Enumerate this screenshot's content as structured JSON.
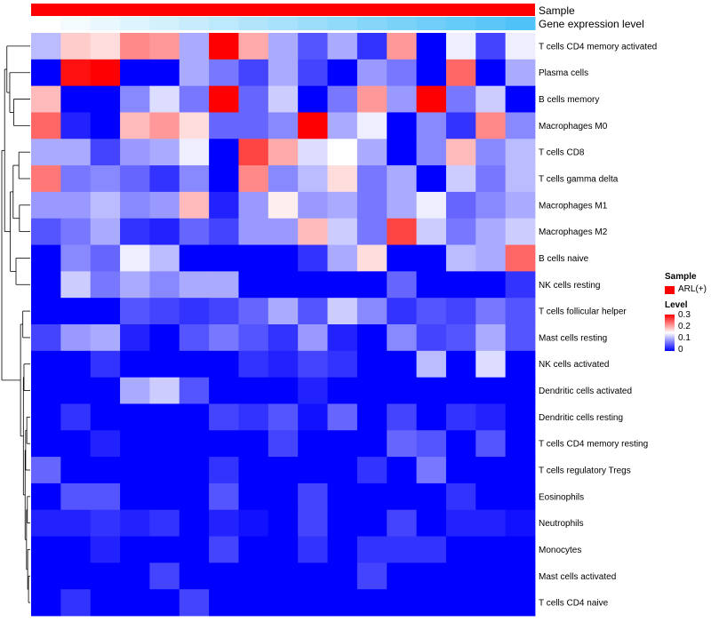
{
  "chart_data": {
    "type": "heatmap",
    "annotation_rows": [
      {
        "label": "Sample",
        "color": "#ff0000"
      },
      {
        "label": "Gene expression level",
        "palette": "white-to-skyblue"
      }
    ],
    "gene_expression_gradient": [
      "#ffffff",
      "#4fc3f7"
    ],
    "rows": [
      "T cells CD4 memory activated",
      "Plasma cells",
      "B cells memory",
      "Macrophages M0",
      "T cells CD8",
      "T cells gamma delta",
      "Macrophages M1",
      "Macrophages M2",
      "B cells naive",
      "NK cells resting",
      "T cells follicular helper",
      "Mast cells resting",
      "NK cells activated",
      "Dendritic cells activated",
      "Dendritic cells resting",
      "T cells CD4 memory resting",
      "T cells regulatory  Tregs",
      "Eosinophils",
      "Neutrophils",
      "Monocytes",
      "Mast cells activated",
      "T cells CD4 naive"
    ],
    "n_columns": 17,
    "values": [
      [
        0.11,
        0.18,
        0.17,
        0.22,
        0.21,
        0.1,
        0.3,
        0.2,
        0.1,
        0.05,
        0.1,
        0.03,
        0.21,
        0.0,
        0.14,
        0.04,
        0.14
      ],
      [
        0.0,
        0.29,
        0.3,
        0.0,
        0.0,
        0.1,
        0.07,
        0.04,
        0.1,
        0.04,
        0.0,
        0.09,
        0.07,
        0.0,
        0.24,
        0.0,
        0.1
      ],
      [
        0.19,
        0.0,
        0.0,
        0.08,
        0.13,
        0.07,
        0.3,
        0.06,
        0.12,
        0.0,
        0.07,
        0.21,
        0.09,
        0.3,
        0.07,
        0.12,
        0.0
      ],
      [
        0.24,
        0.02,
        0.0,
        0.19,
        0.21,
        0.17,
        0.06,
        0.06,
        0.08,
        0.3,
        0.1,
        0.14,
        0.0,
        0.08,
        0.03,
        0.22,
        0.08
      ],
      [
        0.1,
        0.1,
        0.04,
        0.09,
        0.1,
        0.14,
        0.0,
        0.26,
        0.2,
        0.13,
        0.15,
        0.1,
        0.0,
        0.08,
        0.19,
        0.08,
        0.11
      ],
      [
        0.23,
        0.07,
        0.08,
        0.06,
        0.03,
        0.08,
        0.0,
        0.22,
        0.08,
        0.11,
        0.17,
        0.07,
        0.1,
        0.0,
        0.12,
        0.07,
        0.11
      ],
      [
        0.09,
        0.09,
        0.11,
        0.08,
        0.09,
        0.19,
        0.02,
        0.09,
        0.16,
        0.09,
        0.1,
        0.07,
        0.1,
        0.14,
        0.06,
        0.08,
        0.1
      ],
      [
        0.05,
        0.07,
        0.1,
        0.03,
        0.02,
        0.06,
        0.04,
        0.09,
        0.09,
        0.19,
        0.12,
        0.07,
        0.26,
        0.12,
        0.07,
        0.1,
        0.12
      ],
      [
        0.0,
        0.08,
        0.06,
        0.14,
        0.11,
        0.0,
        0.0,
        0.0,
        0.0,
        0.03,
        0.1,
        0.17,
        0.0,
        0.0,
        0.11,
        0.1,
        0.24
      ],
      [
        0.0,
        0.12,
        0.07,
        0.1,
        0.08,
        0.1,
        0.1,
        0.0,
        0.0,
        0.0,
        0.0,
        0.0,
        0.06,
        0.0,
        0.0,
        0.0,
        0.03
      ],
      [
        0.0,
        0.0,
        0.0,
        0.05,
        0.04,
        0.03,
        0.04,
        0.06,
        0.1,
        0.05,
        0.12,
        0.08,
        0.03,
        0.05,
        0.04,
        0.07,
        0.05
      ],
      [
        0.04,
        0.09,
        0.1,
        0.02,
        0.0,
        0.05,
        0.07,
        0.05,
        0.03,
        0.09,
        0.02,
        0.0,
        0.08,
        0.04,
        0.05,
        0.1,
        0.05
      ],
      [
        0.0,
        0.0,
        0.03,
        0.0,
        0.0,
        0.0,
        0.0,
        0.03,
        0.02,
        0.04,
        0.03,
        0.0,
        0.0,
        0.11,
        0.0,
        0.13,
        0.0
      ],
      [
        0.0,
        0.0,
        0.0,
        0.1,
        0.12,
        0.05,
        0.0,
        0.0,
        0.0,
        0.02,
        0.0,
        0.0,
        0.0,
        0.0,
        0.0,
        0.0,
        0.0
      ],
      [
        0.0,
        0.03,
        0.0,
        0.0,
        0.0,
        0.0,
        0.04,
        0.03,
        0.05,
        0.01,
        0.06,
        0.0,
        0.04,
        0.0,
        0.03,
        0.02,
        0.0
      ],
      [
        0.0,
        0.0,
        0.02,
        0.0,
        0.0,
        0.0,
        0.0,
        0.0,
        0.04,
        0.0,
        0.0,
        0.0,
        0.06,
        0.05,
        0.0,
        0.05,
        0.0
      ],
      [
        0.06,
        0.0,
        0.0,
        0.0,
        0.0,
        0.0,
        0.03,
        0.0,
        0.0,
        0.0,
        0.0,
        0.03,
        0.0,
        0.07,
        0.0,
        0.0,
        0.0
      ],
      [
        0.0,
        0.05,
        0.05,
        0.0,
        0.0,
        0.0,
        0.05,
        0.0,
        0.0,
        0.04,
        0.0,
        0.0,
        0.0,
        0.0,
        0.03,
        0.0,
        0.0
      ],
      [
        0.02,
        0.02,
        0.03,
        0.02,
        0.03,
        0.0,
        0.02,
        0.01,
        0.0,
        0.04,
        0.0,
        0.0,
        0.04,
        0.0,
        0.02,
        0.02,
        0.01
      ],
      [
        0.0,
        0.0,
        0.02,
        0.0,
        0.0,
        0.0,
        0.04,
        0.0,
        0.0,
        0.03,
        0.0,
        0.03,
        0.03,
        0.03,
        0.0,
        0.0,
        0.0
      ],
      [
        0.0,
        0.0,
        0.0,
        0.0,
        0.04,
        0.0,
        0.0,
        0.0,
        0.0,
        0.0,
        0.0,
        0.04,
        0.0,
        0.0,
        0.0,
        0.0,
        0.0
      ],
      [
        0.0,
        0.03,
        0.0,
        0.0,
        0.0,
        0.04,
        0.0,
        0.0,
        0.0,
        0.0,
        0.0,
        0.0,
        0.0,
        0.0,
        0.0,
        0.0,
        0.0
      ]
    ],
    "color_scale": {
      "low": "#0000ff",
      "mid": "#ffffff",
      "high": "#ff0000",
      "min": 0,
      "mid_value": 0.15,
      "max": 0.3
    },
    "legend": {
      "sample_title": "Sample",
      "sample_entry": "ARL(+)",
      "sample_color": "#ff0000",
      "level_title": "Level",
      "level_ticks": [
        "0.3",
        "0.2",
        "0.1",
        "0"
      ],
      "level_tick_values": [
        0.3,
        0.2,
        0.1,
        0
      ],
      "position": "right"
    },
    "row_dendrogram": true
  }
}
